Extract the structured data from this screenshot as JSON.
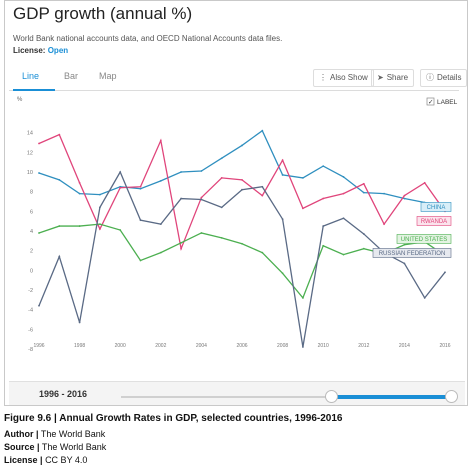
{
  "header": {
    "title": "GDP growth (annual %)",
    "subtitle": "World Bank national accounts data, and OECD National Accounts data files.",
    "license_label": "License:",
    "license_value": "Open"
  },
  "tabs": [
    {
      "label": "Line",
      "active": true
    },
    {
      "label": "Bar",
      "active": false
    },
    {
      "label": "Map",
      "active": false
    }
  ],
  "actions": {
    "also_show": "Also Show",
    "share": "Share",
    "details": "Details"
  },
  "icons": {
    "also_show": "bars-icon",
    "share": "share-icon",
    "details": "info-icon",
    "label_toggle": "checkbox-icon"
  },
  "label_toggle": {
    "text": "LABEL",
    "checked": true
  },
  "range": {
    "label": "1996 - 2016",
    "selected_start": 1996,
    "selected_end": 2016
  },
  "colors": {
    "accent": "#1a8fd6",
    "china": "#2f8fbf",
    "rwanda": "#e0457b",
    "us": "#4caf50",
    "russia": "#5a6a85"
  },
  "caption": {
    "figure": "Figure 9.6 | Annual Growth Rates in GDP, selected countries, 1996-2016",
    "author_label": "Author |",
    "author_value": "The World Bank",
    "source_label": "Source |",
    "source_value": "The World Bank",
    "license_label": "License |",
    "license_value": "CC BY 4.0"
  },
  "chart_data": {
    "type": "line",
    "ylabel": "%",
    "x": [
      1996,
      1997,
      1998,
      1999,
      2000,
      2001,
      2002,
      2003,
      2004,
      2005,
      2006,
      2007,
      2008,
      2009,
      2010,
      2011,
      2012,
      2013,
      2014,
      2015,
      2016
    ],
    "xticks": [
      1996,
      1998,
      2000,
      2002,
      2004,
      2006,
      2008,
      2010,
      2012,
      2014,
      2016
    ],
    "yticks": [
      -8,
      -6,
      -4,
      -2,
      0,
      2,
      4,
      6,
      8,
      10,
      12,
      14
    ],
    "ylim": [
      -8,
      16
    ],
    "xlim": [
      1996,
      2016
    ],
    "grid": false,
    "series": [
      {
        "name": "CHINA",
        "color": "#2f8fbf",
        "values": [
          9.9,
          9.2,
          7.8,
          7.7,
          8.5,
          8.3,
          9.1,
          10.0,
          10.1,
          11.4,
          12.7,
          14.2,
          9.7,
          9.4,
          10.6,
          9.5,
          7.9,
          7.8,
          7.3,
          6.9,
          6.7
        ]
      },
      {
        "name": "RWANDA",
        "color": "#e0457b",
        "values": [
          12.9,
          13.8,
          8.9,
          4.2,
          8.4,
          8.5,
          13.2,
          2.2,
          7.4,
          9.4,
          9.2,
          7.6,
          11.2,
          6.3,
          7.3,
          7.8,
          8.8,
          4.7,
          7.6,
          8.9,
          6.0
        ]
      },
      {
        "name": "UNITED STATES",
        "color": "#4caf50",
        "values": [
          3.8,
          4.5,
          4.5,
          4.7,
          4.1,
          1.0,
          1.8,
          2.8,
          3.8,
          3.3,
          2.7,
          1.8,
          -0.3,
          -2.8,
          2.5,
          1.6,
          2.2,
          1.7,
          2.6,
          2.9,
          1.5
        ]
      },
      {
        "name": "RUSSIAN FEDERATION",
        "color": "#5a6a85",
        "values": [
          -3.6,
          1.4,
          -5.3,
          6.4,
          10.0,
          5.1,
          4.7,
          7.3,
          7.2,
          6.4,
          8.2,
          8.5,
          5.2,
          -7.8,
          4.5,
          5.3,
          3.7,
          1.8,
          0.7,
          -2.8,
          -0.2
        ]
      }
    ]
  }
}
